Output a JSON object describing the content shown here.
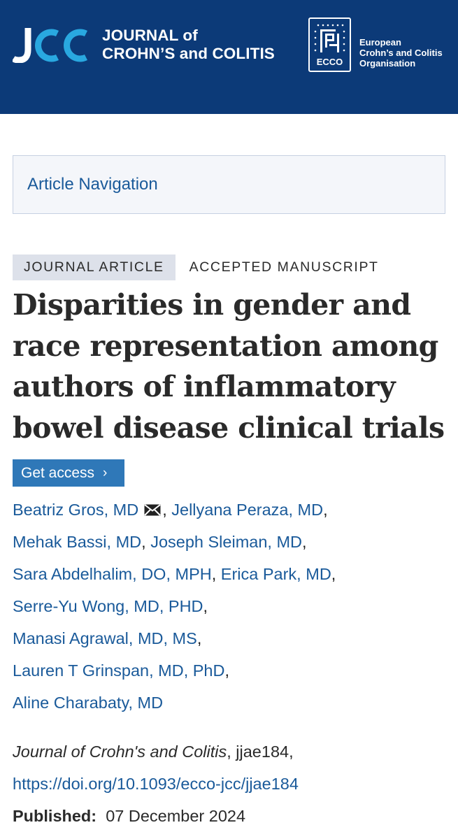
{
  "header": {
    "journal_line1": "JOURNAL of",
    "journal_line2": "CROHN’S and COLITIS",
    "ecco_badge_text": "ECCO",
    "ecco_line1": "European",
    "ecco_line2": "Crohn’s and Colitis",
    "ecco_line3": "Organisation",
    "colors": {
      "background": "#0c3a78",
      "logo_light_blue": "#29a8e0"
    }
  },
  "nav": {
    "label": "Article Navigation"
  },
  "tags": {
    "type": "JOURNAL ARTICLE",
    "status": "ACCEPTED MANUSCRIPT"
  },
  "article": {
    "title_lines": [
      "Disparities in gender and",
      "race representation among",
      "authors of inflammatory",
      "bowel disease clinical trials"
    ]
  },
  "access": {
    "label": "Get access",
    "chevron": "›"
  },
  "authors": [
    "Beatriz Gros, MD",
    "Jellyana Peraza, MD",
    "Mehak Bassi, MD",
    "Joseph Sleiman, MD",
    "Sara Abdelhalim, DO, MPH",
    "Erica Park, MD",
    "Serre-Yu Wong, MD, PHD",
    "Manasi Agrawal, MD, MS",
    "Lauren T Grinspan, MD, PhD",
    "Aline Charabaty, MD"
  ],
  "citation": {
    "journal": "Journal of Crohn's and Colitis",
    "article_id": "jjae184",
    "doi": "https://doi.org/10.1093/ecco-jcc/jjae184",
    "published_label": "Published:",
    "published_date": "07 December 2024"
  }
}
